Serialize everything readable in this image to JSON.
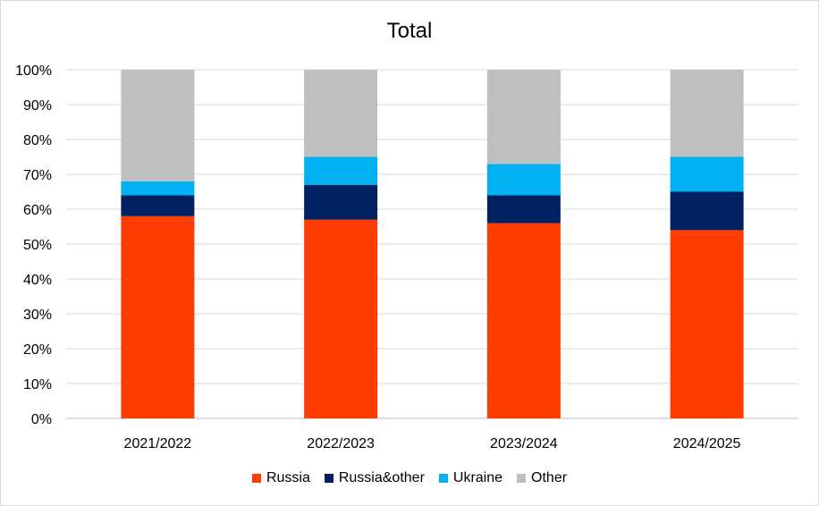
{
  "chart_data": {
    "type": "bar",
    "stacked": true,
    "title": "Total",
    "categories": [
      "2021/2022",
      "2022/2023",
      "2023/2024",
      "2024/2025"
    ],
    "ylim": [
      0,
      100
    ],
    "yticks": [
      "0%",
      "10%",
      "20%",
      "30%",
      "40%",
      "50%",
      "60%",
      "70%",
      "80%",
      "90%",
      "100%"
    ],
    "grid": true,
    "legend_position": "bottom",
    "series": [
      {
        "name": "Russia",
        "color": "#ff3d00",
        "values": [
          58,
          57,
          56,
          54
        ]
      },
      {
        "name": "Russia&other",
        "color": "#002060",
        "values": [
          6,
          10,
          8,
          11
        ]
      },
      {
        "name": "Ukraine",
        "color": "#00b0f0",
        "values": [
          4,
          8,
          9,
          10
        ]
      },
      {
        "name": "Other",
        "color": "#bfbfbf",
        "values": [
          32,
          25,
          27,
          25
        ]
      }
    ]
  }
}
